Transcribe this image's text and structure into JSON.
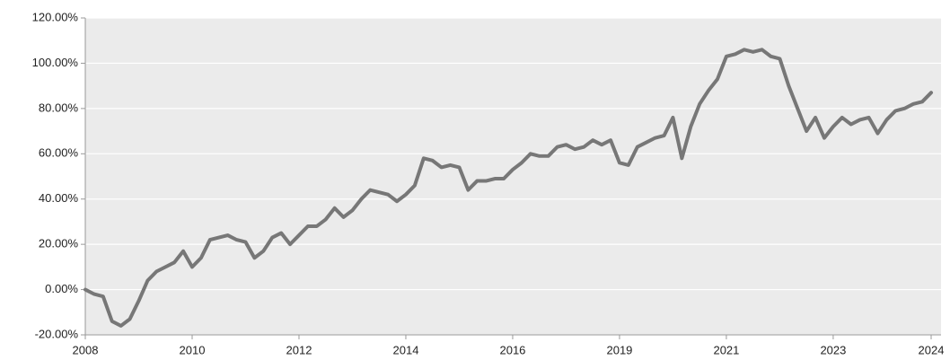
{
  "chart_data": {
    "type": "line",
    "categories": [
      "2008",
      null,
      null,
      null,
      null,
      null,
      null,
      null,
      null,
      null,
      null,
      null,
      "2010",
      null,
      null,
      null,
      null,
      null,
      null,
      null,
      null,
      null,
      null,
      null,
      "2012",
      null,
      null,
      null,
      null,
      null,
      null,
      null,
      null,
      null,
      null,
      null,
      "2014",
      null,
      null,
      null,
      null,
      null,
      null,
      null,
      null,
      null,
      null,
      null,
      "2016",
      null,
      null,
      null,
      null,
      null,
      null,
      null,
      null,
      null,
      null,
      null,
      "2019",
      null,
      null,
      null,
      null,
      null,
      null,
      null,
      null,
      null,
      null,
      null,
      "2021",
      null,
      null,
      null,
      null,
      null,
      null,
      null,
      null,
      null,
      null,
      null,
      "2023",
      null,
      null,
      null,
      null,
      null,
      null,
      null,
      null,
      null,
      null,
      "2024"
    ],
    "series": [
      {
        "color": "#777777",
        "values": [
          0,
          -2,
          -3,
          -14,
          -16,
          -13,
          -5,
          4,
          8,
          10,
          12,
          17,
          10,
          14,
          22,
          23,
          24,
          22,
          21,
          14,
          17,
          23,
          25,
          20,
          24,
          28,
          28,
          31,
          36,
          32,
          35,
          40,
          44,
          43,
          42,
          39,
          42,
          46,
          58,
          57,
          54,
          55,
          54,
          44,
          48,
          48,
          49,
          49,
          53,
          56,
          60,
          59,
          59,
          63,
          64,
          62,
          63,
          66,
          64,
          66,
          56,
          55,
          63,
          65,
          67,
          68,
          76,
          58,
          72,
          82,
          88,
          93,
          103,
          104,
          106,
          105,
          106,
          103,
          102,
          90,
          80,
          70,
          76,
          67,
          72,
          76,
          73,
          75,
          76,
          69,
          75,
          79,
          80,
          82,
          83,
          87
        ]
      }
    ],
    "ylim": [
      -20,
      120
    ],
    "yticks": [
      {
        "value": -20,
        "label": "-20.00%"
      },
      {
        "value": 0,
        "label": "0.00%"
      },
      {
        "value": 20,
        "label": "20.00%"
      },
      {
        "value": 40,
        "label": "40.00%"
      },
      {
        "value": 60,
        "label": "60.00%"
      },
      {
        "value": 80,
        "label": "80.00%"
      },
      {
        "value": 100,
        "label": "100.00%"
      },
      {
        "value": 120,
        "label": "120.00%"
      }
    ],
    "grid": true
  }
}
